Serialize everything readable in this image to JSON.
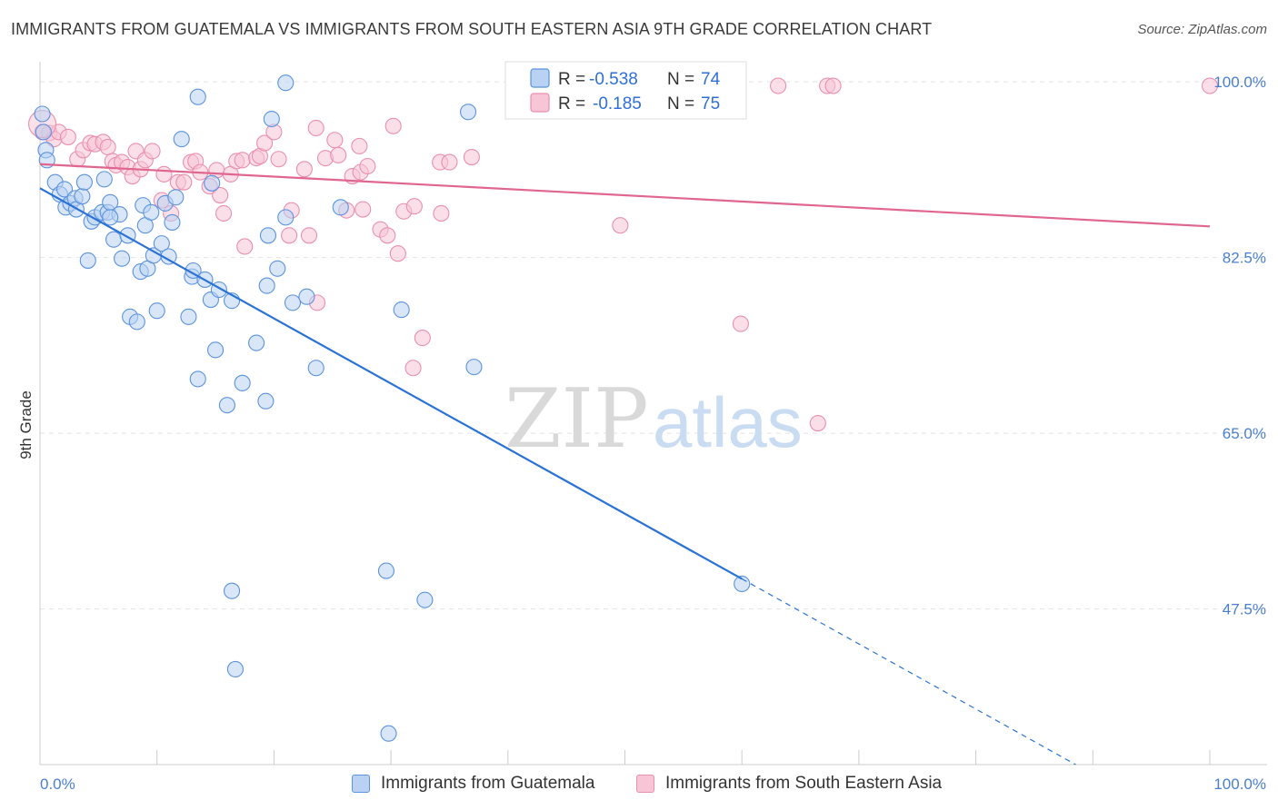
{
  "header": {
    "title": "IMMIGRANTS FROM GUATEMALA VS IMMIGRANTS FROM SOUTH EASTERN ASIA 9TH GRADE CORRELATION CHART",
    "source": "Source: ZipAtlas.com"
  },
  "watermark": {
    "zip": "ZIP",
    "atlas": "atlas"
  },
  "colors": {
    "blue": "#2a72d6",
    "blue_fill": "#b9d2f3",
    "pink": "#e06690",
    "pink_fill": "#f7c5d6",
    "tick_text": "#4a7fd0",
    "grid": "#e3e3e3"
  },
  "stats_box": {
    "rows": [
      {
        "r_label": "R =",
        "r_value": "-0.538",
        "n_label": "N =",
        "n_value": "74"
      },
      {
        "r_label": "R =",
        "r_value": "-0.185",
        "n_label": "N =",
        "n_value": "75"
      }
    ]
  },
  "legend": {
    "items": [
      {
        "label": "Immigrants from Guatemala"
      },
      {
        "label": "Immigrants from South Eastern Asia"
      }
    ]
  },
  "chart_data": {
    "type": "scatter",
    "title": "IMMIGRANTS FROM GUATEMALA VS IMMIGRANTS FROM SOUTH EASTERN ASIA 9TH GRADE CORRELATION CHART",
    "xlabel": "",
    "ylabel": "9th Grade",
    "xlim": [
      0,
      100
    ],
    "ylim": [
      32,
      102
    ],
    "x_tick_labels": [
      "0.0%",
      "100.0%"
    ],
    "y_ticks": [
      47.5,
      65.0,
      82.5,
      100.0
    ],
    "y_tick_labels": [
      "47.5%",
      "65.0%",
      "82.5%",
      "100.0%"
    ],
    "grid": true,
    "legend_position": "bottom-center",
    "series": [
      {
        "name": "Immigrants from Guatemala",
        "color": "#2a72d6",
        "R": -0.538,
        "N": 74,
        "trend": {
          "x0": 0,
          "y0": 89.4,
          "x1": 60,
          "y1": 50.5,
          "dashed_to_x": 100,
          "dashed_to_y": 24.6
        },
        "points": [
          [
            0.2,
            96.8
          ],
          [
            0.3,
            95.0
          ],
          [
            0.5,
            93.2
          ],
          [
            0.6,
            92.2
          ],
          [
            1.3,
            90.0
          ],
          [
            1.7,
            88.8
          ],
          [
            2.1,
            89.3
          ],
          [
            2.2,
            87.5
          ],
          [
            2.6,
            87.9
          ],
          [
            3.0,
            88.4
          ],
          [
            3.1,
            87.3
          ],
          [
            3.6,
            88.6
          ],
          [
            3.8,
            90.0
          ],
          [
            4.1,
            82.2
          ],
          [
            4.4,
            86.1
          ],
          [
            4.7,
            86.5
          ],
          [
            5.3,
            87.0
          ],
          [
            5.5,
            90.3
          ],
          [
            5.8,
            87.0
          ],
          [
            6.0,
            88.0
          ],
          [
            6.3,
            84.3
          ],
          [
            6.8,
            86.8
          ],
          [
            7.0,
            82.4
          ],
          [
            7.5,
            84.7
          ],
          [
            7.7,
            76.6
          ],
          [
            8.3,
            76.1
          ],
          [
            8.6,
            81.1
          ],
          [
            8.8,
            87.7
          ],
          [
            9.0,
            85.7
          ],
          [
            9.2,
            81.4
          ],
          [
            9.5,
            87.0
          ],
          [
            9.7,
            82.7
          ],
          [
            10.0,
            77.2
          ],
          [
            10.4,
            83.9
          ],
          [
            10.7,
            87.9
          ],
          [
            11.0,
            82.6
          ],
          [
            11.3,
            86.0
          ],
          [
            11.6,
            88.5
          ],
          [
            12.1,
            94.3
          ],
          [
            12.7,
            76.6
          ],
          [
            13.0,
            80.6
          ],
          [
            13.1,
            81.2
          ],
          [
            13.5,
            70.4
          ],
          [
            14.1,
            80.3
          ],
          [
            14.6,
            78.3
          ],
          [
            14.7,
            89.9
          ],
          [
            15.0,
            73.3
          ],
          [
            15.3,
            79.3
          ],
          [
            16.0,
            67.8
          ],
          [
            16.4,
            78.2
          ],
          [
            16.4,
            49.3
          ],
          [
            16.7,
            41.5
          ],
          [
            17.3,
            70.0
          ],
          [
            18.5,
            74.0
          ],
          [
            19.3,
            68.2
          ],
          [
            19.4,
            79.7
          ],
          [
            19.5,
            84.7
          ],
          [
            19.8,
            96.3
          ],
          [
            20.3,
            81.4
          ],
          [
            21.0,
            86.5
          ],
          [
            21.0,
            99.9
          ],
          [
            21.6,
            78.0
          ],
          [
            22.8,
            78.6
          ],
          [
            23.6,
            71.5
          ],
          [
            25.7,
            87.5
          ],
          [
            29.6,
            51.3
          ],
          [
            29.8,
            35.1
          ],
          [
            30.9,
            77.3
          ],
          [
            32.9,
            48.4
          ],
          [
            36.6,
            97.0
          ],
          [
            37.1,
            71.6
          ],
          [
            60.0,
            50.0
          ],
          [
            13.5,
            98.5
          ],
          [
            6.0,
            86.5
          ]
        ]
      },
      {
        "name": "Immigrants from South Eastern Asia",
        "color": "#e06690",
        "R": -0.185,
        "N": 75,
        "trend": {
          "x0": 0,
          "y0": 91.8,
          "x1": 100,
          "y1": 85.6
        },
        "points": [
          [
            0.2,
            95.0
          ],
          [
            0.8,
            94.9
          ],
          [
            1.2,
            94.3
          ],
          [
            1.6,
            95.0
          ],
          [
            2.4,
            94.5
          ],
          [
            3.2,
            92.3
          ],
          [
            3.7,
            93.2
          ],
          [
            4.3,
            93.9
          ],
          [
            4.7,
            93.8
          ],
          [
            5.4,
            94.0
          ],
          [
            5.8,
            93.5
          ],
          [
            6.2,
            92.1
          ],
          [
            6.5,
            91.7
          ],
          [
            7.0,
            92.0
          ],
          [
            7.5,
            91.5
          ],
          [
            7.9,
            90.6
          ],
          [
            8.2,
            93.1
          ],
          [
            8.6,
            91.3
          ],
          [
            9.0,
            92.2
          ],
          [
            9.6,
            93.1
          ],
          [
            10.4,
            88.2
          ],
          [
            10.6,
            90.8
          ],
          [
            11.2,
            86.9
          ],
          [
            11.8,
            90.0
          ],
          [
            12.3,
            90.0
          ],
          [
            12.9,
            92.0
          ],
          [
            13.3,
            92.1
          ],
          [
            13.7,
            91.0
          ],
          [
            14.5,
            89.6
          ],
          [
            15.1,
            91.2
          ],
          [
            15.4,
            88.7
          ],
          [
            15.7,
            86.9
          ],
          [
            16.3,
            90.8
          ],
          [
            16.8,
            92.1
          ],
          [
            17.3,
            92.2
          ],
          [
            17.5,
            83.6
          ],
          [
            18.5,
            92.4
          ],
          [
            18.8,
            92.6
          ],
          [
            19.2,
            93.9
          ],
          [
            20.0,
            95.0
          ],
          [
            20.4,
            92.3
          ],
          [
            21.3,
            84.7
          ],
          [
            21.5,
            87.2
          ],
          [
            22.6,
            91.3
          ],
          [
            23.0,
            84.7
          ],
          [
            23.7,
            78.0
          ],
          [
            24.4,
            92.4
          ],
          [
            23.6,
            95.4
          ],
          [
            25.2,
            94.2
          ],
          [
            25.5,
            92.7
          ],
          [
            26.2,
            87.2
          ],
          [
            26.7,
            90.6
          ],
          [
            27.3,
            93.6
          ],
          [
            27.4,
            91.0
          ],
          [
            28.0,
            91.6
          ],
          [
            29.1,
            85.3
          ],
          [
            29.7,
            84.7
          ],
          [
            30.2,
            95.6
          ],
          [
            30.6,
            82.9
          ],
          [
            31.1,
            87.1
          ],
          [
            32.0,
            87.6
          ],
          [
            31.9,
            71.5
          ],
          [
            32.7,
            74.5
          ],
          [
            34.2,
            92.0
          ],
          [
            34.3,
            86.9
          ],
          [
            35.0,
            92.0
          ],
          [
            36.9,
            92.5
          ],
          [
            49.6,
            85.7
          ],
          [
            59.9,
            75.9
          ],
          [
            63.1,
            99.6
          ],
          [
            66.5,
            66.0
          ],
          [
            67.3,
            99.6
          ],
          [
            67.8,
            99.6
          ],
          [
            100.0,
            99.6
          ],
          [
            27.6,
            87.3
          ]
        ]
      }
    ]
  }
}
